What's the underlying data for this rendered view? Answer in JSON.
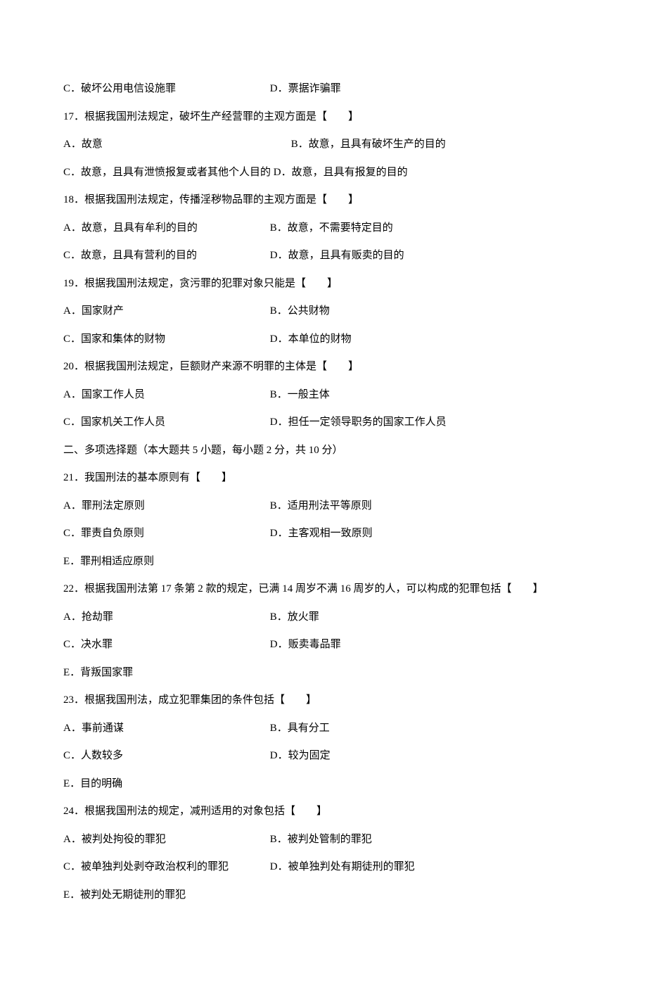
{
  "q16": {
    "C": "C．破坏公用电信设施罪",
    "D": "D．票据诈骗罪"
  },
  "q17": {
    "stem": "17．根据我国刑法规定，破坏生产经营罪的主观方面是【　　】",
    "A": "A．故意",
    "B": "B．故意，且具有破坏生产的目的",
    "C": "C．故意，且具有泄愤报复或者其他个人目的",
    "D": "D．故意，且具有报复的目的"
  },
  "q18": {
    "stem": "18．根据我国刑法规定，传播淫秽物品罪的主观方面是【　　】",
    "A": "A．故意，且具有牟利的目的",
    "B": "B．故意，不需要特定目的",
    "C": "C．故意，且具有营利的目的",
    "D": "D．故意，且具有贩卖的目的"
  },
  "q19": {
    "stem": "19．根据我国刑法规定，贪污罪的犯罪对象只能是【　　】",
    "A": "A．国家财产",
    "B": "B．公共财物",
    "C": "C．国家和集体的财物",
    "D": "D．本单位的财物"
  },
  "q20": {
    "stem": "20．根据我国刑法规定，巨额财产来源不明罪的主体是【　　】",
    "A": "A．国家工作人员",
    "B": "B．一般主体",
    "C": "C．国家机关工作人员",
    "D": "D．担任一定领导职务的国家工作人员"
  },
  "section2": "二、多项选择题（本大题共 5 小题，每小题 2 分，共 10 分）",
  "q21": {
    "stem": "21．我国刑法的基本原则有【　　】",
    "A": "A．罪刑法定原则",
    "B": "B．适用刑法平等原则",
    "C": "C．罪责自负原则",
    "D": "D．主客观相一致原则",
    "E": "E．罪刑相适应原则"
  },
  "q22": {
    "stem": "22．根据我国刑法第 17 条第 2 款的规定，已满 14 周岁不满 16 周岁的人，可以构成的犯罪包括【　　】",
    "A": "A．抢劫罪",
    "B": "B．放火罪",
    "C": "C．决水罪",
    "D": "D．贩卖毒品罪",
    "E": "E．背叛国家罪"
  },
  "q23": {
    "stem": "23．根据我国刑法，成立犯罪集团的条件包括【　　】",
    "A": "A．事前通谋",
    "B": "B．具有分工",
    "C": "C．人数较多",
    "D": "D．较为固定",
    "E": "E．目的明确"
  },
  "q24": {
    "stem": "24．根据我国刑法的规定，减刑适用的对象包括【　　】",
    "A": "A．被判处拘役的罪犯",
    "B": "B．被判处管制的罪犯",
    "C": "C．被单独判处剥夺政治权利的罪犯",
    "D": "D．被单独判处有期徒刑的罪犯",
    "E": "E．被判处无期徒刑的罪犯"
  }
}
